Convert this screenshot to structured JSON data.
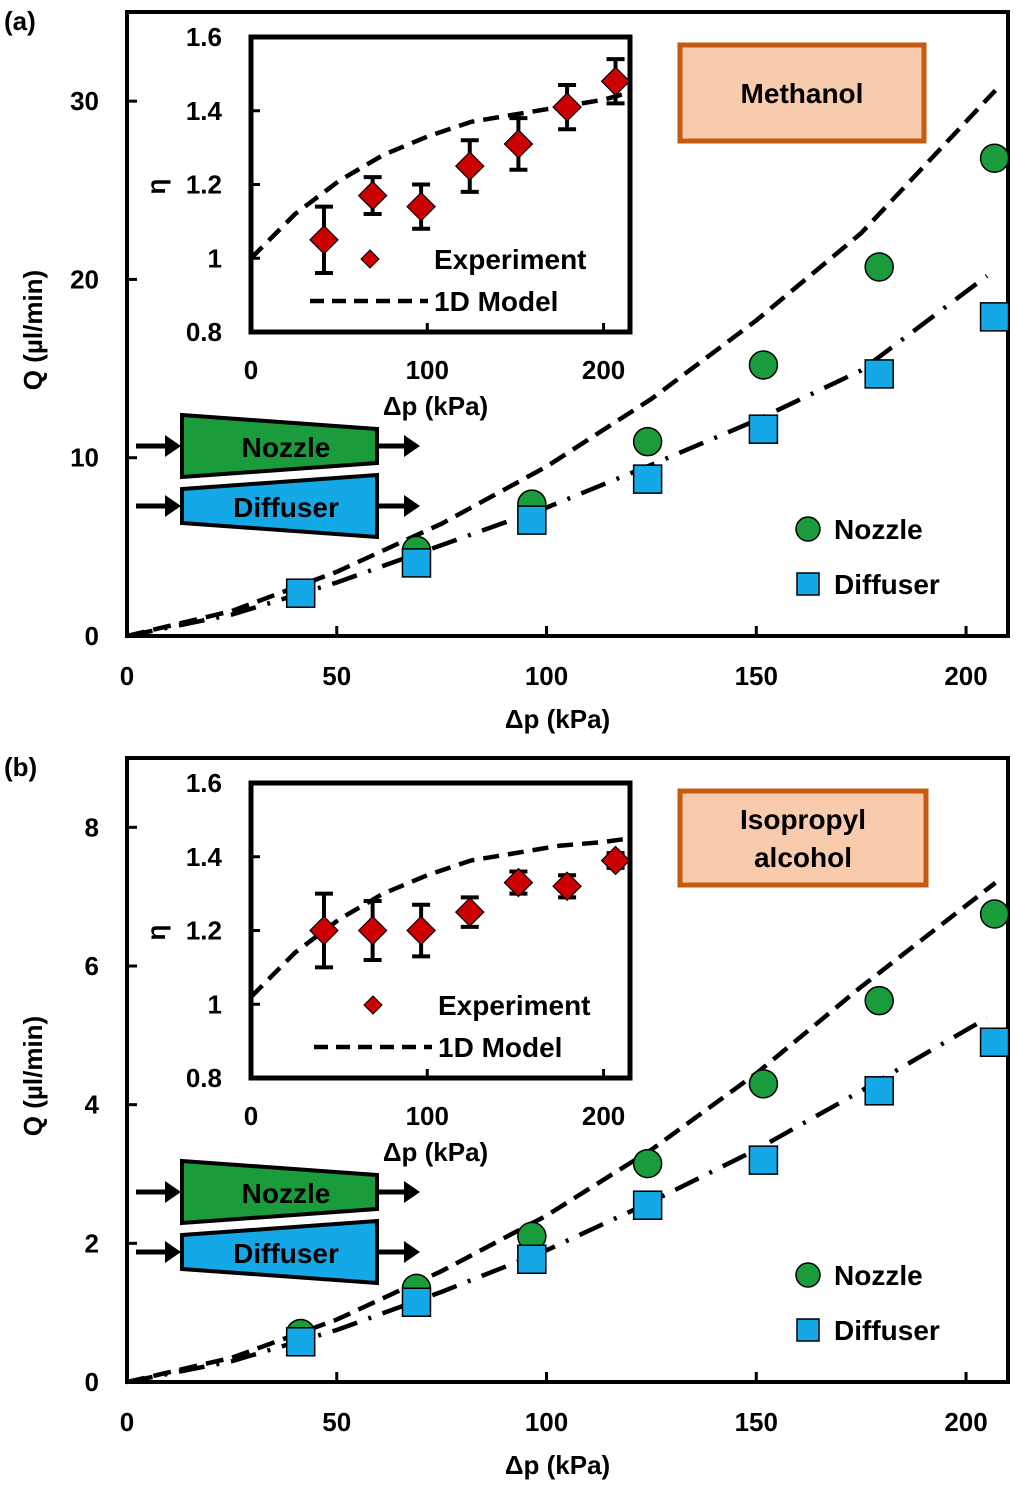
{
  "colors": {
    "nozzle": "#1a9c3c",
    "diffuser": "#14a8e6",
    "experiment": "#cc0000",
    "label_fill": "#f8cbad",
    "label_border": "#c55a11",
    "axis": "#000000"
  },
  "chart_data": [
    {
      "panel_label": "(a)",
      "type": "scatter",
      "fluid_label": [
        "Methanol"
      ],
      "xlabel": "Δp (kPa)",
      "ylabel": "Q (µl/min)",
      "xlim": [
        0,
        210
      ],
      "ylim": [
        0,
        35
      ],
      "xticks": [
        0,
        50,
        100,
        150,
        200
      ],
      "yticks": [
        0,
        10,
        20,
        30
      ],
      "legend": {
        "nozzle": "Nozzle",
        "diffuser": "Diffuser"
      },
      "schematic": {
        "nozzle": "Nozzle",
        "diffuser": "Diffuser"
      },
      "series": [
        {
          "name": "Nozzle",
          "marker": "circle",
          "x": [
            41.4,
            69,
            96.5,
            124.1,
            151.7,
            179.3,
            206.8
          ],
          "y": [
            2.4,
            4.8,
            7.4,
            10.9,
            15.2,
            20.7,
            26.8
          ]
        },
        {
          "name": "Diffuser",
          "marker": "square",
          "x": [
            41.4,
            69,
            96.5,
            124.1,
            151.7,
            179.3,
            206.8
          ],
          "y": [
            2.4,
            4.1,
            6.5,
            8.8,
            11.6,
            14.7,
            17.9
          ]
        }
      ],
      "model_curves": [
        {
          "name": "Nozzle model",
          "style": "dashed",
          "x": [
            0,
            25,
            50,
            75,
            100,
            125,
            150,
            175,
            207
          ],
          "y": [
            0,
            1.4,
            3.6,
            6.3,
            9.5,
            13.3,
            17.7,
            22.6,
            30.6
          ]
        },
        {
          "name": "Diffuser model",
          "style": "dash-dot",
          "x": [
            0,
            25,
            50,
            75,
            100,
            125,
            150,
            175,
            205
          ],
          "y": [
            0,
            1.2,
            3.0,
            5.1,
            7.2,
            9.6,
            12.1,
            14.9,
            20.2
          ]
        }
      ],
      "inset": {
        "ylabel": "η",
        "xlabel": "Δp (kPa)",
        "xlim": [
          0,
          215
        ],
        "ylim": [
          0.8,
          1.6
        ],
        "xticks": [
          0,
          100,
          200
        ],
        "yticks": [
          0.8,
          1,
          1.2,
          1.4,
          1.6
        ],
        "ytick_labels": [
          "0.8",
          "1",
          "1.2",
          "1.4",
          "1.6"
        ],
        "legend": {
          "experiment": "Experiment",
          "model": "1D Model"
        },
        "experiment": {
          "x": [
            41.4,
            69,
            96.5,
            124.1,
            151.7,
            179.3,
            206.8
          ],
          "y": [
            1.05,
            1.17,
            1.14,
            1.25,
            1.31,
            1.41,
            1.48
          ],
          "err": [
            0.09,
            0.05,
            0.06,
            0.07,
            0.07,
            0.06,
            0.06
          ]
        },
        "model": {
          "x": [
            0,
            25,
            50,
            75,
            100,
            125,
            150,
            175,
            200,
            215
          ],
          "y": [
            1.0,
            1.12,
            1.21,
            1.28,
            1.33,
            1.37,
            1.39,
            1.41,
            1.43,
            1.45
          ]
        }
      }
    },
    {
      "panel_label": "(b)",
      "type": "scatter",
      "fluid_label": [
        "Isopropyl",
        "alcohol"
      ],
      "xlabel": "Δp (kPa)",
      "ylabel": "Q (µl/min)",
      "xlim": [
        0,
        210
      ],
      "ylim": [
        0,
        9
      ],
      "xticks": [
        0,
        50,
        100,
        150,
        200
      ],
      "yticks": [
        0,
        2,
        4,
        6,
        8
      ],
      "legend": {
        "nozzle": "Nozzle",
        "diffuser": "Diffuser"
      },
      "schematic": {
        "nozzle": "Nozzle",
        "diffuser": "Diffuser"
      },
      "series": [
        {
          "name": "Nozzle",
          "marker": "circle",
          "x": [
            41.4,
            69,
            96.5,
            124.1,
            151.7,
            179.3,
            206.8
          ],
          "y": [
            0.7,
            1.35,
            2.1,
            3.15,
            4.3,
            5.5,
            6.75
          ]
        },
        {
          "name": "Diffuser",
          "marker": "square",
          "x": [
            41.4,
            69,
            96.5,
            124.1,
            151.7,
            179.3,
            206.8
          ],
          "y": [
            0.58,
            1.15,
            1.77,
            2.55,
            3.2,
            4.2,
            4.9
          ]
        }
      ],
      "model_curves": [
        {
          "name": "Nozzle model",
          "style": "dashed",
          "x": [
            0,
            25,
            50,
            75,
            100,
            125,
            150,
            175,
            207
          ],
          "y": [
            0,
            0.35,
            0.9,
            1.6,
            2.4,
            3.35,
            4.45,
            5.7,
            7.2
          ]
        },
        {
          "name": "Diffuser model",
          "style": "dash-dot",
          "x": [
            0,
            25,
            50,
            75,
            100,
            125,
            150,
            175,
            205
          ],
          "y": [
            0,
            0.3,
            0.75,
            1.3,
            1.9,
            2.6,
            3.35,
            4.2,
            5.25
          ]
        }
      ],
      "inset": {
        "ylabel": "η",
        "xlabel": "Δp (kPa)",
        "xlim": [
          0,
          215
        ],
        "ylim": [
          0.8,
          1.6
        ],
        "xticks": [
          0,
          100,
          200
        ],
        "yticks": [
          0.8,
          1,
          1.2,
          1.4,
          1.6
        ],
        "ytick_labels": [
          "0.8",
          "1",
          "1.2",
          "1.4",
          "1.6"
        ],
        "legend": {
          "experiment": "Experiment",
          "model": "1D Model"
        },
        "experiment": {
          "x": [
            41.4,
            69,
            96.5,
            124.1,
            151.7,
            179.3,
            206.8
          ],
          "y": [
            1.2,
            1.2,
            1.2,
            1.25,
            1.33,
            1.32,
            1.39
          ],
          "err": [
            0.1,
            0.08,
            0.07,
            0.04,
            0.03,
            0.03,
            0.02
          ]
        },
        "model": {
          "x": [
            0,
            25,
            50,
            75,
            100,
            125,
            150,
            175,
            200,
            215
          ],
          "y": [
            1.02,
            1.14,
            1.23,
            1.3,
            1.35,
            1.39,
            1.41,
            1.43,
            1.44,
            1.45
          ]
        }
      }
    }
  ]
}
